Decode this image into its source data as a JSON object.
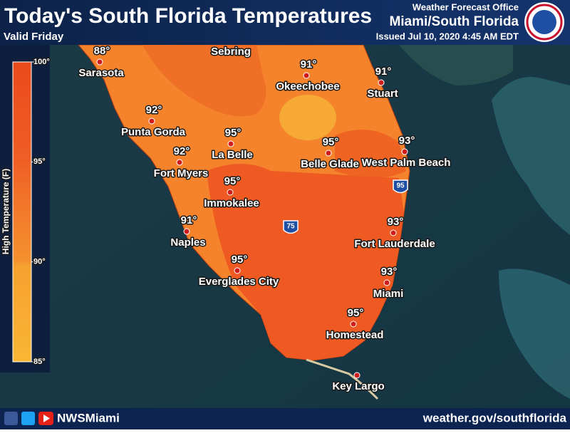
{
  "header": {
    "title": "Today's South Florida Temperatures",
    "valid": "Valid Friday",
    "office": "Weather Forecast Office",
    "location": "Miami/South Florida",
    "issued": "Issued Jul 10, 2020 4:45 AM EDT"
  },
  "legend": {
    "title": "High Temperature (F)",
    "ticks": [
      {
        "value": 100,
        "label": "100°"
      },
      {
        "value": 95,
        "label": "95°"
      },
      {
        "value": 90,
        "label": "90°"
      },
      {
        "value": 85,
        "label": "85°"
      }
    ]
  },
  "cities": [
    {
      "name": "Sarasota",
      "high": {
        "value": 88,
        "label": "88°"
      }
    },
    {
      "name": "Sebring"
    },
    {
      "name": "Okeechobee",
      "high": {
        "value": 91,
        "label": "91°"
      }
    },
    {
      "name": "Stuart",
      "high": {
        "value": 91,
        "label": "91°"
      }
    },
    {
      "name": "Punta Gorda",
      "high": {
        "value": 92,
        "label": "92°"
      }
    },
    {
      "name": "La Belle",
      "high": {
        "value": 95,
        "label": "95°"
      }
    },
    {
      "name": "Belle Glade",
      "high": {
        "value": 95,
        "label": "95°"
      }
    },
    {
      "name": "West Palm Beach",
      "high": {
        "value": 93,
        "label": "93°"
      }
    },
    {
      "name": "Fort Myers",
      "high": {
        "value": 92,
        "label": "92°"
      }
    },
    {
      "name": "Immokalee",
      "high": {
        "value": 95,
        "label": "95°"
      }
    },
    {
      "name": "Naples",
      "high": {
        "value": 91,
        "label": "91°"
      }
    },
    {
      "name": "Fort Lauderdale",
      "high": {
        "value": 93,
        "label": "93°"
      }
    },
    {
      "name": "Everglades City",
      "high": {
        "value": 95,
        "label": "95°"
      }
    },
    {
      "name": "Miami",
      "high": {
        "value": 93,
        "label": "93°"
      }
    },
    {
      "name": "Homestead",
      "high": {
        "value": 95,
        "label": "95°"
      }
    },
    {
      "name": "Key Largo"
    }
  ],
  "highways": [
    "75",
    "95"
  ],
  "footer": {
    "handle": "NWSMiami",
    "url": "weather.gov/southflorida"
  }
}
